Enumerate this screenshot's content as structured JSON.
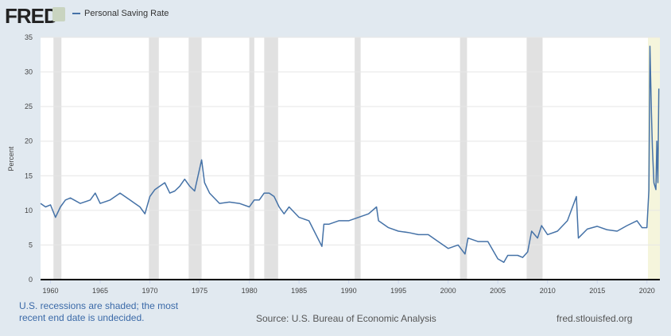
{
  "header": {
    "logo": "FRED",
    "series_label": "Personal Saving Rate"
  },
  "footer": {
    "note": "U.S. recessions are shaded; the most recent end date is undecided.",
    "source": "Source: U.S. Bureau of Economic Analysis",
    "site": "fred.stlouisfed.org"
  },
  "colors": {
    "line": "#4572a7",
    "recession": "#e1e1e1",
    "undecided": "#f5f5dc",
    "background": "#e1e9f0"
  },
  "chart_data": {
    "type": "line",
    "title": "Personal Saving Rate",
    "ylabel": "Percent",
    "xlabel": "",
    "xlim": [
      1959,
      2021.3
    ],
    "ylim": [
      0,
      35
    ],
    "xticks": [
      1960,
      1965,
      1970,
      1975,
      1980,
      1985,
      1990,
      1995,
      2000,
      2005,
      2010,
      2015,
      2020
    ],
    "yticks": [
      0,
      5,
      10,
      15,
      20,
      25,
      30,
      35
    ],
    "grid": true,
    "recessions": [
      [
        1960.3,
        1961.1
      ],
      [
        1969.9,
        1970.9
      ],
      [
        1973.9,
        1975.2
      ],
      [
        1980.0,
        1980.5
      ],
      [
        1981.5,
        1982.9
      ],
      [
        1990.6,
        1991.2
      ],
      [
        2001.2,
        2001.9
      ],
      [
        2007.9,
        2009.5
      ]
    ],
    "undecided_recession": [
      2020.1,
      2021.3
    ],
    "series": [
      {
        "name": "Personal Saving Rate",
        "x": [
          1959,
          1959.5,
          1960,
          1960.5,
          1961,
          1961.5,
          1962,
          1963,
          1964,
          1964.5,
          1965,
          1966,
          1967,
          1968,
          1969,
          1969.5,
          1970,
          1970.5,
          1971,
          1971.5,
          1972,
          1972.5,
          1973,
          1973.5,
          1974,
          1974.5,
          1975.2,
          1975.5,
          1976,
          1977,
          1978,
          1979,
          1980,
          1980.5,
          1981,
          1981.5,
          1982,
          1982.5,
          1983,
          1983.5,
          1984,
          1985,
          1986,
          1987.3,
          1987.5,
          1988,
          1989,
          1990,
          1991,
          1992,
          1992.8,
          1993,
          1994,
          1995,
          1996,
          1997,
          1998,
          1999,
          2000,
          2001,
          2001.7,
          2002,
          2003,
          2004,
          2005,
          2005.6,
          2006,
          2007,
          2007.5,
          2008,
          2008.4,
          2009,
          2009.4,
          2010,
          2011,
          2012,
          2012.9,
          2013.1,
          2014,
          2015,
          2016,
          2017,
          2018,
          2019,
          2019.5,
          2020,
          2020.2,
          2020.3,
          2020.45,
          2020.55,
          2020.7,
          2020.9,
          2021.0,
          2021.1,
          2021.2
        ],
        "y": [
          11,
          10.5,
          10.8,
          9,
          10.5,
          11.5,
          11.8,
          11,
          11.5,
          12.5,
          11,
          11.5,
          12.5,
          11.5,
          10.5,
          9.5,
          12,
          13,
          13.5,
          14,
          12.5,
          12.8,
          13.5,
          14.5,
          13.5,
          12.8,
          17.3,
          14,
          12.5,
          11,
          11.2,
          11,
          10.5,
          11.5,
          11.5,
          12.5,
          12.5,
          12,
          10.5,
          9.5,
          10.5,
          9,
          8.5,
          4.8,
          8,
          8,
          8.5,
          8.5,
          9,
          9.5,
          10.5,
          8.5,
          7.5,
          7,
          6.8,
          6.5,
          6.5,
          5.5,
          4.5,
          5,
          3.7,
          6,
          5.5,
          5.5,
          3,
          2.5,
          3.5,
          3.5,
          3.2,
          4,
          7,
          6,
          7.8,
          6.5,
          7,
          8.5,
          12,
          6,
          7.3,
          7.7,
          7.2,
          7,
          7.8,
          8.5,
          7.5,
          7.5,
          12.9,
          33.7,
          24,
          19,
          14,
          13,
          20,
          14,
          27.6
        ]
      }
    ]
  }
}
